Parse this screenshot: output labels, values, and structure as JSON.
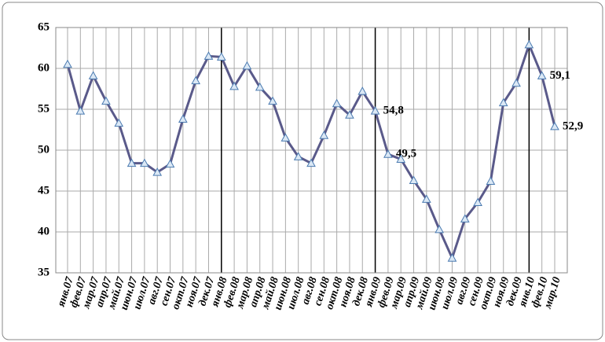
{
  "chart_data": {
    "type": "line",
    "categories": [
      "янв.07",
      "фев.07",
      "мар.07",
      "апр.07",
      "май.07",
      "июн.07",
      "июл.07",
      "авг.07",
      "сен.07",
      "окт.07",
      "ноя.07",
      "дек.07",
      "янв.08",
      "фев.08",
      "мар.08",
      "апр.08",
      "май.08",
      "июн.08",
      "июл.08",
      "авг.08",
      "сен.08",
      "окт.08",
      "ноя.08",
      "дек.08",
      "янв.09",
      "фев.09",
      "мар.09",
      "апр.09",
      "май.09",
      "июн.09",
      "июл.09",
      "авг.09",
      "сен.09",
      "окт.09",
      "ноя.09",
      "дек.09",
      "янв.10",
      "фев.10",
      "мар.10"
    ],
    "series": [
      {
        "color": "#5a5a8a",
        "values": [
          60.5,
          54.8,
          59.1,
          56,
          53.3,
          48.4,
          48.4,
          47.3,
          48.3,
          53.8,
          58.5,
          61.5,
          61.4,
          57.8,
          60.3,
          57.7,
          56,
          51.5,
          49.2,
          48.4,
          51.8,
          55.7,
          54.3,
          57.2,
          54.8,
          49.5,
          48.9,
          46.3,
          44,
          40.3,
          36.8,
          41.6,
          43.6,
          46.2,
          55.8,
          58.2,
          62.9,
          59.1,
          52.9
        ],
        "value_labels": [
          null,
          null,
          null,
          null,
          null,
          null,
          null,
          null,
          null,
          null,
          null,
          null,
          null,
          null,
          null,
          null,
          null,
          null,
          null,
          null,
          null,
          null,
          null,
          null,
          "54,8",
          "49,5",
          null,
          null,
          null,
          null,
          null,
          null,
          null,
          null,
          null,
          null,
          null,
          "59,1",
          "52,9"
        ]
      }
    ],
    "ylim": [
      35,
      65
    ],
    "yticks": [
      35,
      40,
      45,
      50,
      55,
      60,
      65
    ],
    "grid": true
  }
}
